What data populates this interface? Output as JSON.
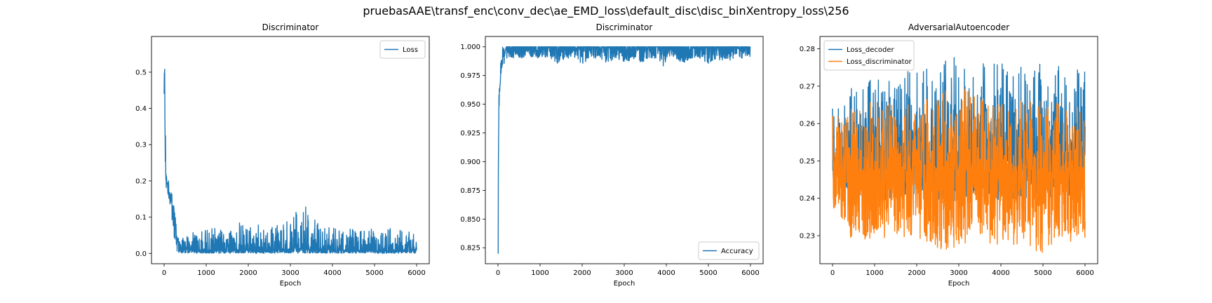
{
  "figure": {
    "suptitle": "pruebasAAE\\transf_enc\\conv_dec\\ae_EMD_loss\\default_disc\\disc_binXentropy_loss\\256"
  },
  "chart_data": [
    {
      "type": "line",
      "title": "Discriminator",
      "xlabel": "Epoch",
      "ylabel": "",
      "xlim": [
        -300,
        6300
      ],
      "ylim": [
        -0.0285,
        0.5985
      ],
      "xticks": [
        0,
        1000,
        2000,
        3000,
        4000,
        5000,
        6000
      ],
      "xtick_labels": [
        "0",
        "1000",
        "2000",
        "3000",
        "4000",
        "5000",
        "6000"
      ],
      "yticks": [
        0.0,
        0.1,
        0.2,
        0.3,
        0.4,
        0.5
      ],
      "ytick_labels": [
        "0.0",
        "0.1",
        "0.2",
        "0.3",
        "0.4",
        "0.5"
      ],
      "legend_position": "upper right",
      "grid": false,
      "series": [
        {
          "name": "Loss",
          "color": "#1f77b4",
          "x": [
            0,
            10,
            20,
            30,
            40,
            60,
            80,
            100,
            120,
            150,
            180,
            200,
            250,
            300,
            350,
            400,
            500,
            600,
            700,
            800,
            900,
            1000,
            1200,
            1400,
            1600,
            1800,
            2000,
            2200,
            2400,
            2600,
            2800,
            3000,
            3100,
            3200,
            3300,
            3350,
            3400,
            3600,
            3800,
            4000,
            4200,
            4400,
            4600,
            4800,
            5000,
            5200,
            5400,
            5600,
            5800,
            6000
          ],
          "y": [
            0.44,
            0.565,
            0.33,
            0.26,
            0.22,
            0.2,
            0.185,
            0.18,
            0.17,
            0.155,
            0.14,
            0.12,
            0.08,
            0.045,
            0.025,
            0.015,
            0.012,
            0.01,
            0.01,
            0.009,
            0.009,
            0.008,
            0.009,
            0.008,
            0.009,
            0.008,
            0.009,
            0.008,
            0.009,
            0.009,
            0.01,
            0.012,
            0.015,
            0.013,
            0.012,
            0.012,
            0.011,
            0.01,
            0.009,
            0.009,
            0.008,
            0.009,
            0.008,
            0.009,
            0.008,
            0.008,
            0.009,
            0.008,
            0.008,
            0.008
          ],
          "y_min": [
            0.44,
            0.3,
            0.22,
            0.2,
            0.19,
            0.17,
            0.16,
            0.15,
            0.14,
            0.12,
            0.09,
            0.06,
            0.02,
            0.005,
            0.0,
            0.0,
            0.0,
            0.0,
            0.0,
            0.0,
            0.0,
            0.0,
            0.0,
            0.0,
            0.0,
            0.0,
            0.0,
            0.0,
            0.0,
            0.0,
            0.0,
            0.0,
            0.0,
            0.0,
            0.0,
            0.0,
            0.0,
            0.0,
            0.0,
            0.0,
            0.0,
            0.0,
            0.0,
            0.0,
            0.0,
            0.0,
            0.0,
            0.0,
            0.0,
            0.0
          ],
          "y_max": [
            0.44,
            0.565,
            0.44,
            0.34,
            0.28,
            0.24,
            0.22,
            0.21,
            0.2,
            0.19,
            0.17,
            0.16,
            0.12,
            0.06,
            0.04,
            0.035,
            0.05,
            0.045,
            0.06,
            0.05,
            0.06,
            0.065,
            0.075,
            0.06,
            0.065,
            0.085,
            0.07,
            0.08,
            0.07,
            0.075,
            0.08,
            0.095,
            0.12,
            0.1,
            0.13,
            0.15,
            0.11,
            0.09,
            0.075,
            0.07,
            0.065,
            0.07,
            0.06,
            0.07,
            0.065,
            0.06,
            0.07,
            0.065,
            0.06,
            0.05
          ]
        }
      ]
    },
    {
      "type": "line",
      "title": "Discriminator",
      "xlabel": "Epoch",
      "ylabel": "",
      "xlim": [
        -300,
        6300
      ],
      "ylim": [
        0.8111,
        1.009
      ],
      "xticks": [
        0,
        1000,
        2000,
        3000,
        4000,
        5000,
        6000
      ],
      "xtick_labels": [
        "0",
        "1000",
        "2000",
        "3000",
        "4000",
        "5000",
        "6000"
      ],
      "yticks": [
        0.825,
        0.85,
        0.875,
        0.9,
        0.925,
        0.95,
        0.975,
        1.0
      ],
      "ytick_labels": [
        "0.825",
        "0.850",
        "0.875",
        "0.900",
        "0.925",
        "0.950",
        "0.975",
        "1.000"
      ],
      "legend_position": "lower right",
      "grid": false,
      "series": [
        {
          "name": "Accuracy",
          "color": "#1f77b4",
          "x": [
            0,
            5,
            10,
            20,
            30,
            40,
            60,
            80,
            100,
            150,
            200,
            300,
            400,
            500,
            600,
            700,
            800,
            1000,
            1200,
            1400,
            1600,
            1800,
            2000,
            2200,
            2400,
            2600,
            2800,
            3000,
            3200,
            3400,
            3600,
            3800,
            3950,
            4000,
            4200,
            4400,
            4600,
            4800,
            5000,
            5200,
            5400,
            5600,
            5800,
            6000
          ],
          "y": [
            0.82,
            0.82,
            0.905,
            0.94,
            0.955,
            0.965,
            0.975,
            0.985,
            0.99,
            0.995,
            1.0,
            1.0,
            1.0,
            1.0,
            1.0,
            1.0,
            1.0,
            1.0,
            1.0,
            1.0,
            1.0,
            1.0,
            1.0,
            1.0,
            1.0,
            1.0,
            1.0,
            1.0,
            1.0,
            1.0,
            1.0,
            1.0,
            1.0,
            1.0,
            1.0,
            1.0,
            1.0,
            1.0,
            1.0,
            1.0,
            1.0,
            1.0,
            1.0,
            1.0
          ],
          "y_min": [
            0.82,
            0.82,
            0.905,
            0.94,
            0.95,
            0.96,
            0.965,
            0.97,
            0.98,
            0.985,
            0.99,
            0.99,
            0.99,
            0.99,
            0.99,
            0.995,
            0.99,
            0.99,
            0.99,
            0.985,
            0.99,
            0.99,
            0.985,
            0.99,
            0.99,
            0.985,
            0.99,
            0.985,
            0.99,
            0.985,
            0.99,
            0.99,
            0.98,
            0.99,
            0.99,
            0.985,
            0.99,
            0.99,
            0.985,
            0.99,
            0.985,
            0.99,
            0.99,
            0.99
          ],
          "y_max": [
            0.82,
            0.82,
            0.905,
            0.96,
            0.975,
            0.985,
            0.99,
            1.0,
            1.0,
            1.0,
            1.0,
            1.0,
            1.0,
            1.0,
            1.0,
            1.0,
            1.0,
            1.0,
            1.0,
            1.0,
            1.0,
            1.0,
            1.0,
            1.0,
            1.0,
            1.0,
            1.0,
            1.0,
            1.0,
            1.0,
            1.0,
            1.0,
            1.0,
            1.0,
            1.0,
            1.0,
            1.0,
            1.0,
            1.0,
            1.0,
            1.0,
            1.0,
            1.0,
            1.0
          ]
        }
      ]
    },
    {
      "type": "line",
      "title": "AdversarialAutoencoder",
      "xlabel": "Epoch",
      "ylabel": "",
      "xlim": [
        -300,
        6300
      ],
      "ylim": [
        0.2225,
        0.2833
      ],
      "xticks": [
        0,
        1000,
        2000,
        3000,
        4000,
        5000,
        6000
      ],
      "xtick_labels": [
        "0",
        "1000",
        "2000",
        "3000",
        "4000",
        "5000",
        "6000"
      ],
      "yticks": [
        0.23,
        0.24,
        0.25,
        0.26,
        0.27,
        0.28
      ],
      "ytick_labels": [
        "0.23",
        "0.24",
        "0.25",
        "0.26",
        "0.27",
        "0.28"
      ],
      "legend_position": "upper left",
      "grid": false,
      "series": [
        {
          "name": "Loss_decoder",
          "color": "#1f77b4",
          "x": [
            0,
            500,
            1000,
            1500,
            2000,
            2500,
            2850,
            3000,
            3500,
            4000,
            4500,
            5000,
            5500,
            6000
          ],
          "y": [
            0.25,
            0.251,
            0.251,
            0.251,
            0.251,
            0.251,
            0.251,
            0.251,
            0.251,
            0.251,
            0.251,
            0.251,
            0.251,
            0.251
          ],
          "y_min": [
            0.243,
            0.24,
            0.239,
            0.24,
            0.24,
            0.239,
            0.239,
            0.24,
            0.24,
            0.239,
            0.24,
            0.24,
            0.24,
            0.24
          ],
          "y_max": [
            0.264,
            0.27,
            0.272,
            0.271,
            0.276,
            0.273,
            0.28,
            0.274,
            0.276,
            0.276,
            0.275,
            0.276,
            0.275,
            0.274
          ]
        },
        {
          "name": "Loss_discriminator",
          "color": "#ff7f0e",
          "x": [
            0,
            500,
            1000,
            1500,
            2000,
            2500,
            3000,
            3500,
            4000,
            4500,
            5000,
            5500,
            6000
          ],
          "y": [
            0.248,
            0.247,
            0.247,
            0.247,
            0.247,
            0.247,
            0.247,
            0.247,
            0.247,
            0.247,
            0.247,
            0.247,
            0.247
          ],
          "y_min": [
            0.237,
            0.228,
            0.229,
            0.229,
            0.229,
            0.226,
            0.227,
            0.229,
            0.226,
            0.228,
            0.225,
            0.228,
            0.229
          ],
          "y_max": [
            0.262,
            0.264,
            0.266,
            0.265,
            0.265,
            0.268,
            0.27,
            0.267,
            0.265,
            0.266,
            0.266,
            0.265,
            0.264
          ]
        }
      ]
    }
  ]
}
